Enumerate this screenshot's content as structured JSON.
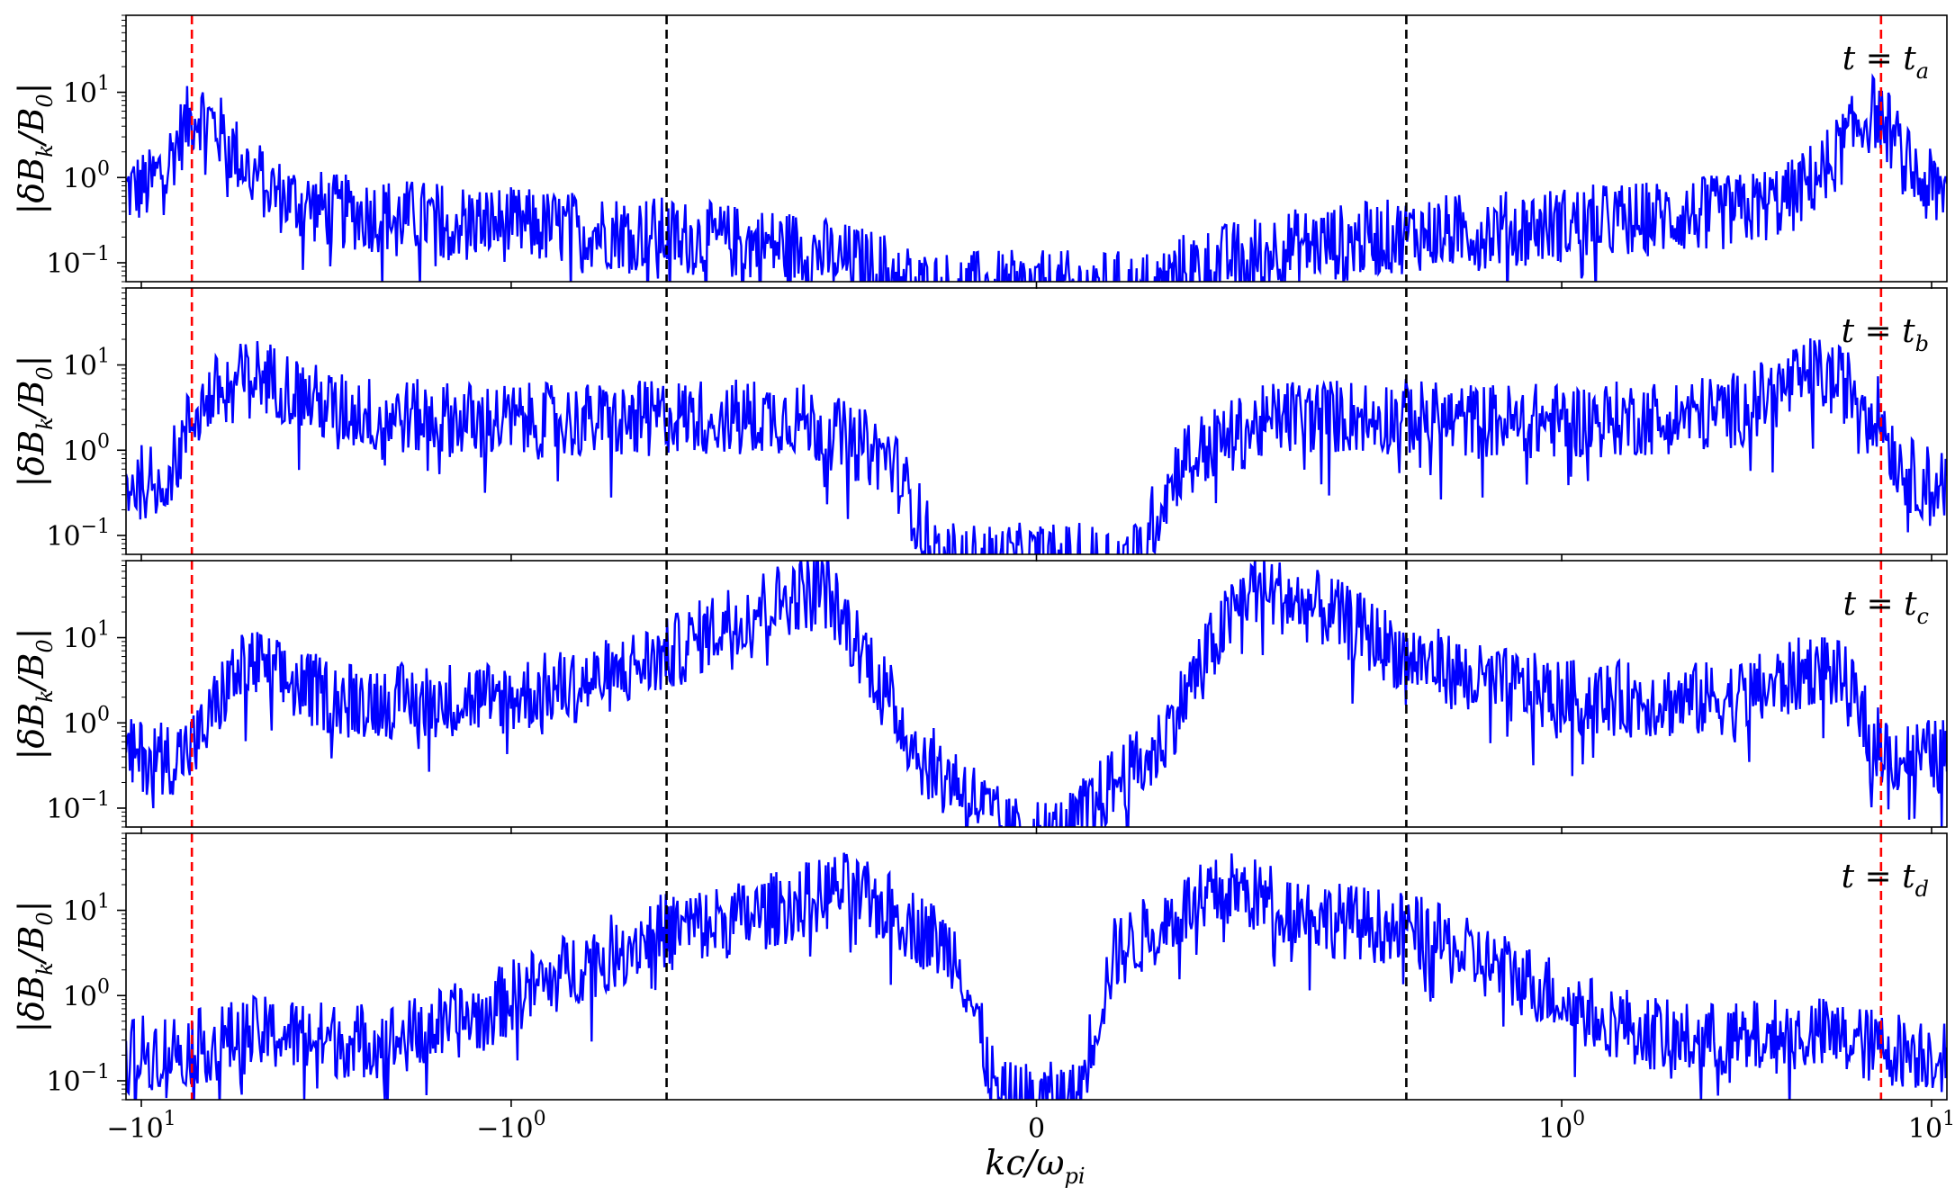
{
  "chart_data": {
    "type": "line",
    "x_scale": "symlog",
    "xlabel": "kc/ω_pi",
    "ylabel": "|δB_k/B_0|",
    "y_scale": "log",
    "xlim": [
      -11,
      11
    ],
    "ylim": [
      0.06,
      80
    ],
    "x_ticks": [
      {
        "value": -10,
        "label": "−10",
        "sup": "1"
      },
      {
        "value": -1,
        "label": "−10",
        "sup": "0"
      },
      {
        "value": 0,
        "label": "0",
        "sup": ""
      },
      {
        "value": 1,
        "label": "10",
        "sup": "0"
      },
      {
        "value": 10,
        "label": "10",
        "sup": "1"
      }
    ],
    "y_ticks": [
      {
        "value": 0.1,
        "label": "10",
        "sup": "−1"
      },
      {
        "value": 1,
        "label": "10",
        "sup": "0"
      },
      {
        "value": 10,
        "label": "10",
        "sup": "1"
      }
    ],
    "series_color": "#0000ff",
    "vlines": [
      {
        "x": -7.3,
        "color": "#ff0000",
        "style": "dashed"
      },
      {
        "x": 7.3,
        "color": "#ff0000",
        "style": "dashed"
      },
      {
        "x": -0.38,
        "color": "#000000",
        "style": "dashed"
      },
      {
        "x": 0.38,
        "color": "#000000",
        "style": "dashed"
      }
    ],
    "panels": [
      {
        "label_main": "t = t",
        "label_sub": "a",
        "envelope": [
          [
            -11,
            0.7
          ],
          [
            -9.5,
            0.8
          ],
          [
            -8.5,
            1.5
          ],
          [
            -7.6,
            4
          ],
          [
            -7.0,
            6
          ],
          [
            -6.3,
            4
          ],
          [
            -5.3,
            1.5
          ],
          [
            -4.2,
            0.6
          ],
          [
            -3,
            0.4
          ],
          [
            -2,
            0.35
          ],
          [
            -1.2,
            0.3
          ],
          [
            -0.7,
            0.25
          ],
          [
            -0.4,
            0.22
          ],
          [
            -0.25,
            0.15
          ],
          [
            -0.15,
            0.08
          ],
          [
            -0.12,
            0.05
          ],
          [
            0.12,
            0.05
          ],
          [
            0.15,
            0.08
          ],
          [
            0.25,
            0.15
          ],
          [
            0.4,
            0.22
          ],
          [
            0.7,
            0.25
          ],
          [
            1.2,
            0.3
          ],
          [
            2,
            0.35
          ],
          [
            3,
            0.4
          ],
          [
            4.2,
            0.6
          ],
          [
            5.3,
            1.5
          ],
          [
            6.3,
            4
          ],
          [
            7.0,
            6
          ],
          [
            7.6,
            4
          ],
          [
            8.5,
            1.5
          ],
          [
            9.5,
            0.8
          ],
          [
            11,
            0.7
          ]
        ]
      },
      {
        "label_main": "t = t",
        "label_sub": "b",
        "envelope": [
          [
            -11,
            0.4
          ],
          [
            -9,
            0.45
          ],
          [
            -8,
            0.8
          ],
          [
            -7.3,
            2.5
          ],
          [
            -6.2,
            5
          ],
          [
            -4.8,
            8
          ],
          [
            -4.2,
            6
          ],
          [
            -3,
            3
          ],
          [
            -2,
            2.5
          ],
          [
            -1,
            2.2
          ],
          [
            -0.5,
            2.2
          ],
          [
            -0.38,
            2.5
          ],
          [
            -0.25,
            2.5
          ],
          [
            -0.15,
            0.8
          ],
          [
            -0.1,
            0.05
          ],
          [
            0.1,
            0.05
          ],
          [
            0.15,
            0.8
          ],
          [
            0.25,
            2.5
          ],
          [
            0.38,
            2.5
          ],
          [
            0.5,
            2.2
          ],
          [
            1,
            2.2
          ],
          [
            2,
            2.5
          ],
          [
            3,
            3
          ],
          [
            4.2,
            6
          ],
          [
            4.8,
            8
          ],
          [
            6.2,
            5
          ],
          [
            7.3,
            2.5
          ],
          [
            8,
            0.8
          ],
          [
            9,
            0.45
          ],
          [
            11,
            0.4
          ]
        ]
      },
      {
        "label_main": "t = t",
        "label_sub": "c",
        "envelope": [
          [
            -11,
            0.4
          ],
          [
            -8,
            0.4
          ],
          [
            -7,
            0.6
          ],
          [
            -5.8,
            3
          ],
          [
            -5,
            5
          ],
          [
            -4,
            3
          ],
          [
            -3,
            2
          ],
          [
            -2,
            1.8
          ],
          [
            -1,
            2
          ],
          [
            -0.6,
            3
          ],
          [
            -0.38,
            6
          ],
          [
            -0.3,
            20
          ],
          [
            -0.22,
            40
          ],
          [
            -0.17,
            5
          ],
          [
            -0.12,
            0.4
          ],
          [
            -0.08,
            0.2
          ],
          [
            -0.03,
            0.05
          ],
          [
            0.03,
            0.05
          ],
          [
            0.08,
            0.2
          ],
          [
            0.12,
            0.4
          ],
          [
            0.17,
            5
          ],
          [
            0.22,
            40
          ],
          [
            0.3,
            20
          ],
          [
            0.38,
            6
          ],
          [
            0.6,
            3
          ],
          [
            1,
            2
          ],
          [
            2,
            1.8
          ],
          [
            3,
            2
          ],
          [
            4,
            3
          ],
          [
            5,
            5
          ],
          [
            5.8,
            3
          ],
          [
            7,
            0.6
          ],
          [
            8,
            0.4
          ],
          [
            11,
            0.4
          ]
        ]
      },
      {
        "label_main": "t = t",
        "label_sub": "d",
        "envelope": [
          [
            -11,
            0.2
          ],
          [
            -7,
            0.25
          ],
          [
            -5,
            0.35
          ],
          [
            -4,
            0.35
          ],
          [
            -3,
            0.3
          ],
          [
            -2,
            0.3
          ],
          [
            -1.2,
            0.6
          ],
          [
            -0.8,
            1.5
          ],
          [
            -0.55,
            3
          ],
          [
            -0.38,
            6
          ],
          [
            -0.3,
            8
          ],
          [
            -0.2,
            18
          ],
          [
            -0.15,
            10
          ],
          [
            -0.08,
            3
          ],
          [
            -0.04,
            0.06
          ],
          [
            0.04,
            0.06
          ],
          [
            0.08,
            3
          ],
          [
            0.15,
            10
          ],
          [
            0.2,
            18
          ],
          [
            0.3,
            8
          ],
          [
            0.38,
            6
          ],
          [
            0.55,
            3
          ],
          [
            0.8,
            1.5
          ],
          [
            1.2,
            0.6
          ],
          [
            2,
            0.3
          ],
          [
            3,
            0.3
          ],
          [
            4,
            0.35
          ],
          [
            5,
            0.35
          ],
          [
            7,
            0.25
          ],
          [
            11,
            0.2
          ]
        ]
      }
    ]
  }
}
